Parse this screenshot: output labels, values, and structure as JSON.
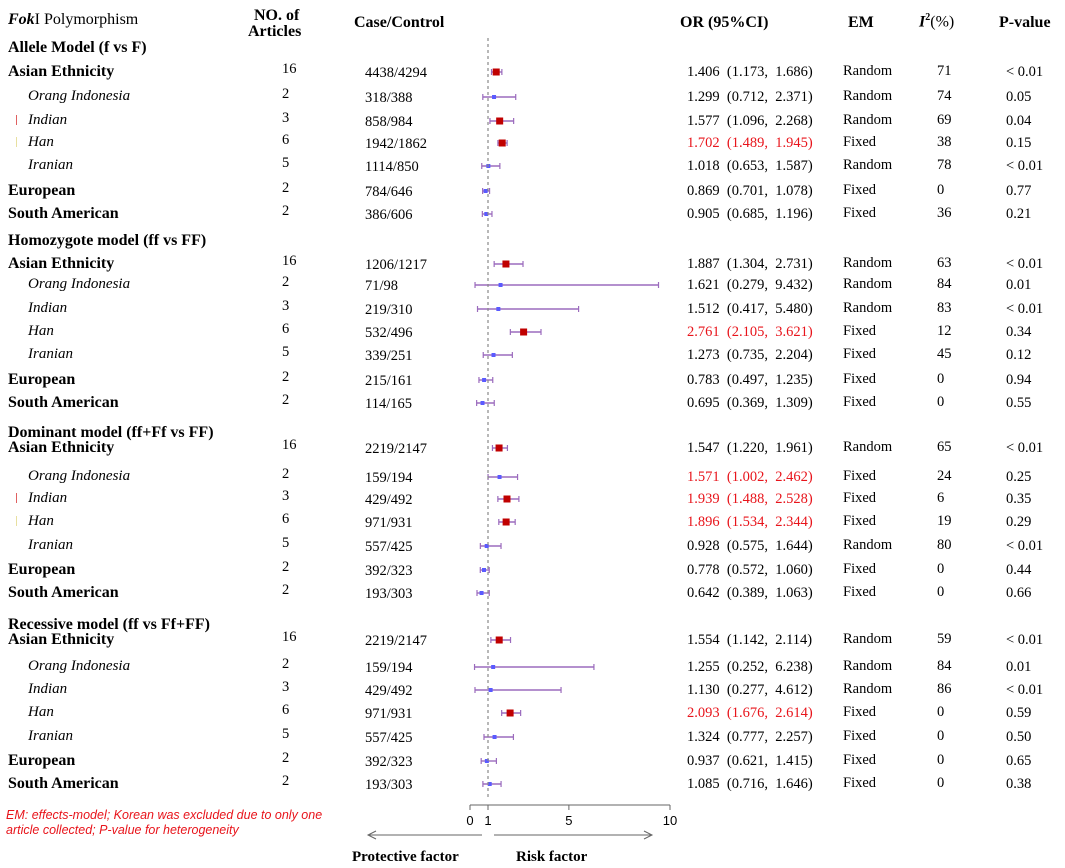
{
  "headers": {
    "polymorphism_italic": "Fok",
    "polymorphism_rest": "I Polymorphism",
    "articles_line1": "NO. of",
    "articles_line2": "Articles",
    "case_control": "Case/Control",
    "or": "OR (95%CI)",
    "em": "EM",
    "i2_base": "I",
    "i2_sup": "2",
    "i2_rest": "(%)",
    "pvalue": "P-value"
  },
  "axis": {
    "ticks": [
      {
        "value": 0,
        "label": "0"
      },
      {
        "value": 1,
        "label": "1"
      },
      {
        "value": 5,
        "label": "5"
      },
      {
        "value": 10,
        "label": "10"
      }
    ],
    "reference_line": 1,
    "left_label": "Protective factor",
    "right_label": "Risk factor"
  },
  "footnote": "EM: effects-model; Korean was excluded due to only one article collected; P-value for heterogeneity",
  "colors": {
    "marker_significant": "#c00000",
    "marker_nonsignificant": "#5a5aff",
    "ci_line": "#9b6bbd",
    "highlight_text": "#e8141b",
    "flag_red": "#e06060",
    "flag_yellow": "#e8e0a0"
  },
  "chart_data": {
    "type": "forest",
    "title": "FokI Polymorphism",
    "xlabel": "OR (95%CI)",
    "xlim": [
      0,
      10
    ],
    "sections": [
      {
        "title": "Allele Model (f vs F)",
        "rows": [
          {
            "label": "Asian Ethnicity",
            "level": "group",
            "articles": "16",
            "case_control": "4438/4294",
            "or_text": "1.406  (1.173,  1.686)",
            "or": 1.406,
            "lo": 1.173,
            "hi": 1.686,
            "em": "Random",
            "i2": "71",
            "p": "< 0.01",
            "significant": true,
            "highlight": false
          },
          {
            "label": "Orang Indonesia",
            "level": "sub",
            "articles": "2",
            "case_control": "318/388",
            "or_text": "1.299  (0.712,  2.371)",
            "or": 1.299,
            "lo": 0.712,
            "hi": 2.371,
            "em": "Random",
            "i2": "74",
            "p": "0.05",
            "significant": false,
            "highlight": false
          },
          {
            "label": "Indian",
            "level": "sub",
            "flag": "red",
            "articles": "3",
            "case_control": "858/984",
            "or_text": "1.577  (1.096,  2.268)",
            "or": 1.577,
            "lo": 1.096,
            "hi": 2.268,
            "em": "Random",
            "i2": "69",
            "p": "0.04",
            "significant": true,
            "highlight": false
          },
          {
            "label": "Han",
            "level": "sub",
            "flag": "yellow",
            "articles": "6",
            "case_control": "1942/1862",
            "or_text": "1.702  (1.489,  1.945)",
            "or": 1.702,
            "lo": 1.489,
            "hi": 1.945,
            "em": "Fixed",
            "i2": "38",
            "p": "0.15",
            "significant": true,
            "highlight": true
          },
          {
            "label": "Iranian",
            "level": "sub",
            "articles": "5",
            "case_control": "1114/850",
            "or_text": "1.018  (0.653,  1.587)",
            "or": 1.018,
            "lo": 0.653,
            "hi": 1.587,
            "em": "Random",
            "i2": "78",
            "p": "< 0.01",
            "significant": false,
            "highlight": false
          },
          {
            "label": "European",
            "level": "group",
            "articles": "2",
            "case_control": "784/646",
            "or_text": "0.869  (0.701,  1.078)",
            "or": 0.869,
            "lo": 0.701,
            "hi": 1.078,
            "em": "Fixed",
            "i2": "0",
            "p": "0.77",
            "significant": false,
            "highlight": false
          },
          {
            "label": "South American",
            "level": "group",
            "articles": "2",
            "case_control": "386/606",
            "or_text": "0.905  (0.685,  1.196)",
            "or": 0.905,
            "lo": 0.685,
            "hi": 1.196,
            "em": "Fixed",
            "i2": "36",
            "p": "0.21",
            "significant": false,
            "highlight": false
          }
        ]
      },
      {
        "title": "Homozygote model (ff vs FF)",
        "rows": [
          {
            "label": "Asian Ethnicity",
            "level": "group",
            "articles": "16",
            "case_control": "1206/1217",
            "or_text": "1.887  (1.304,  2.731)",
            "or": 1.887,
            "lo": 1.304,
            "hi": 2.731,
            "em": "Random",
            "i2": "63",
            "p": "< 0.01",
            "significant": true,
            "highlight": false
          },
          {
            "label": "Orang Indonesia",
            "level": "sub",
            "articles": "2",
            "case_control": "71/98",
            "or_text": "1.621  (0.279,  9.432)",
            "or": 1.621,
            "lo": 0.279,
            "hi": 9.432,
            "em": "Random",
            "i2": "84",
            "p": "0.01",
            "significant": false,
            "highlight": false
          },
          {
            "label": "Indian",
            "level": "sub",
            "articles": "3",
            "case_control": "219/310",
            "or_text": "1.512  (0.417,  5.480)",
            "or": 1.512,
            "lo": 0.417,
            "hi": 5.48,
            "em": "Random",
            "i2": "83",
            "p": "< 0.01",
            "significant": false,
            "highlight": false
          },
          {
            "label": "Han",
            "level": "sub",
            "articles": "6",
            "case_control": "532/496",
            "or_text": "2.761  (2.105,  3.621)",
            "or": 2.761,
            "lo": 2.105,
            "hi": 3.621,
            "em": "Fixed",
            "i2": "12",
            "p": "0.34",
            "significant": true,
            "highlight": true
          },
          {
            "label": "Iranian",
            "level": "sub",
            "articles": "5",
            "case_control": "339/251",
            "or_text": "1.273  (0.735,  2.204)",
            "or": 1.273,
            "lo": 0.735,
            "hi": 2.204,
            "em": "Fixed",
            "i2": "45",
            "p": "0.12",
            "significant": false,
            "highlight": false
          },
          {
            "label": "European",
            "level": "group",
            "articles": "2",
            "case_control": "215/161",
            "or_text": "0.783  (0.497,  1.235)",
            "or": 0.783,
            "lo": 0.497,
            "hi": 1.235,
            "em": "Fixed",
            "i2": "0",
            "p": "0.94",
            "significant": false,
            "highlight": false
          },
          {
            "label": "South American",
            "level": "group",
            "articles": "2",
            "case_control": "114/165",
            "or_text": "0.695  (0.369,  1.309)",
            "or": 0.695,
            "lo": 0.369,
            "hi": 1.309,
            "em": "Fixed",
            "i2": "0",
            "p": "0.55",
            "significant": false,
            "highlight": false
          }
        ]
      },
      {
        "title": "Dominant model (ff+Ff vs FF)",
        "rows": [
          {
            "label": "Asian Ethnicity",
            "level": "group",
            "articles": "16",
            "case_control": "2219/2147",
            "or_text": "1.547  (1.220,  1.961)",
            "or": 1.547,
            "lo": 1.22,
            "hi": 1.961,
            "em": "Random",
            "i2": "65",
            "p": "< 0.01",
            "significant": true,
            "highlight": false
          },
          {
            "label": "Orang Indonesia",
            "level": "sub",
            "articles": "2",
            "case_control": "159/194",
            "or_text": "1.571  (1.002,  2.462)",
            "or": 1.571,
            "lo": 1.002,
            "hi": 2.462,
            "em": "Fixed",
            "i2": "24",
            "p": "0.25",
            "significant": false,
            "highlight": true
          },
          {
            "label": "Indian",
            "level": "sub",
            "flag": "red",
            "articles": "3",
            "case_control": "429/492",
            "or_text": "1.939  (1.488,  2.528)",
            "or": 1.939,
            "lo": 1.488,
            "hi": 2.528,
            "em": "Fixed",
            "i2": "6",
            "p": "0.35",
            "significant": true,
            "highlight": true
          },
          {
            "label": "Han",
            "level": "sub",
            "flag": "yellow",
            "articles": "6",
            "case_control": "971/931",
            "or_text": "1.896  (1.534,  2.344)",
            "or": 1.896,
            "lo": 1.534,
            "hi": 2.344,
            "em": "Fixed",
            "i2": "19",
            "p": "0.29",
            "significant": true,
            "highlight": true
          },
          {
            "label": "Iranian",
            "level": "sub",
            "articles": "5",
            "case_control": "557/425",
            "or_text": "0.928  (0.575,  1.644)",
            "or": 0.928,
            "lo": 0.575,
            "hi": 1.644,
            "em": "Random",
            "i2": "80",
            "p": "< 0.01",
            "significant": false,
            "highlight": false
          },
          {
            "label": "European",
            "level": "group",
            "articles": "2",
            "case_control": "392/323",
            "or_text": "0.778  (0.572,  1.060)",
            "or": 0.778,
            "lo": 0.572,
            "hi": 1.06,
            "em": "Fixed",
            "i2": "0",
            "p": "0.44",
            "significant": false,
            "highlight": false
          },
          {
            "label": "South American",
            "level": "group",
            "articles": "2",
            "case_control": "193/303",
            "or_text": "0.642  (0.389,  1.063)",
            "or": 0.642,
            "lo": 0.389,
            "hi": 1.063,
            "em": "Fixed",
            "i2": "0",
            "p": "0.66",
            "significant": false,
            "highlight": false
          }
        ]
      },
      {
        "title": "Recessive model (ff vs Ff+FF)",
        "rows": [
          {
            "label": "Asian Ethnicity",
            "level": "group",
            "articles": "16",
            "case_control": "2219/2147",
            "or_text": "1.554  (1.142,  2.114)",
            "or": 1.554,
            "lo": 1.142,
            "hi": 2.114,
            "em": "Random",
            "i2": "59",
            "p": "< 0.01",
            "significant": true,
            "highlight": false
          },
          {
            "label": "Orang Indonesia",
            "level": "sub",
            "articles": "2",
            "case_control": "159/194",
            "or_text": "1.255  (0.252,  6.238)",
            "or": 1.255,
            "lo": 0.252,
            "hi": 6.238,
            "em": "Random",
            "i2": "84",
            "p": "0.01",
            "significant": false,
            "highlight": false
          },
          {
            "label": "Indian",
            "level": "sub",
            "articles": "3",
            "case_control": "429/492",
            "or_text": "1.130  (0.277,  4.612)",
            "or": 1.13,
            "lo": 0.277,
            "hi": 4.612,
            "em": "Random",
            "i2": "86",
            "p": "< 0.01",
            "significant": false,
            "highlight": false
          },
          {
            "label": "Han",
            "level": "sub",
            "articles": "6",
            "case_control": "971/931",
            "or_text": "2.093  (1.676,  2.614)",
            "or": 2.093,
            "lo": 1.676,
            "hi": 2.614,
            "em": "Fixed",
            "i2": "0",
            "p": "0.59",
            "significant": true,
            "highlight": true
          },
          {
            "label": "Iranian",
            "level": "sub",
            "articles": "5",
            "case_control": "557/425",
            "or_text": "1.324  (0.777,  2.257)",
            "or": 1.324,
            "lo": 0.777,
            "hi": 2.257,
            "em": "Fixed",
            "i2": "0",
            "p": "0.50",
            "significant": false,
            "highlight": false
          },
          {
            "label": "European",
            "level": "group",
            "articles": "2",
            "case_control": "392/323",
            "or_text": "0.937  (0.621,  1.415)",
            "or": 0.937,
            "lo": 0.621,
            "hi": 1.415,
            "em": "Fixed",
            "i2": "0",
            "p": "0.65",
            "significant": false,
            "highlight": false
          },
          {
            "label": "South American",
            "level": "group",
            "articles": "2",
            "case_control": "193/303",
            "or_text": "1.085  (0.716,  1.646)",
            "or": 1.085,
            "lo": 0.716,
            "hi": 1.646,
            "em": "Fixed",
            "i2": "0",
            "p": "0.38",
            "significant": false,
            "highlight": false
          }
        ]
      }
    ]
  }
}
